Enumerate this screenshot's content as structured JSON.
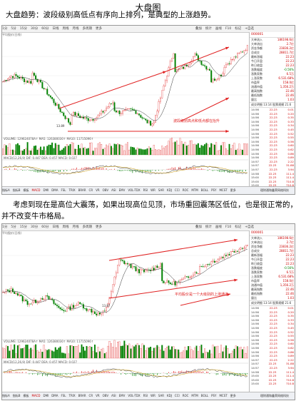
{
  "doc": {
    "title": "大盘图",
    "para1": "大盘趋势：波段级别高低点有序向上排列，是典型的上涨趋势。",
    "para2a": "考虑到现在是高位大震荡，如果出现高位见顶，市场重回震荡区低位，也是很正常的，",
    "para2b": "并不改变牛市格局。"
  },
  "colors": {
    "up": "#e02020",
    "down": "#008000",
    "price_line": "#e06060",
    "avg_line": "#333333",
    "annotation": "#e02020"
  },
  "menu_items": [
    "1分",
    "5分",
    "15分",
    "30分",
    "60分",
    "日线",
    "周线",
    "月线",
    "多周期",
    "更多"
  ],
  "menu_right": [
    "叠加",
    "统计",
    "画线",
    "F10",
    "标记",
    "+自选"
  ],
  "bottom_tabs": [
    "指标A",
    "指标B",
    "模板",
    "MACD",
    "DMI",
    "DMA",
    "FSL",
    "TRIX",
    "BRAR",
    "CR",
    "VR",
    "OBV",
    "ASI",
    "EMV",
    "VOL-TDX",
    "RSI",
    "WR",
    "SAR",
    "KDJ",
    "CCI",
    "ROC",
    "MTM",
    "BOLL",
    "PSY",
    "MCST",
    "更多"
  ],
  "bottom_right": "理财通和鑫荣网络科技",
  "bottom_left": [
    "扩展",
    "",
    ""
  ],
  "vol_label": "VOLUME: 129624078A↑  MA5: 126380030↑  MA10: 11715096↑",
  "macd_label": "MACD(12,26,9)  DIF: 0.447  DEA: 0.457  MACD: 0.027",
  "panel1": {
    "header_code": "000001",
    "sub": "平均股价(日线)",
    "low_label": "13.89",
    "annotation": "波段级别高点和低点都在抬升",
    "side_rows": [
      {
        "k": "大单流入",
        "v": "186198.6亿"
      },
      {
        "k": "大单流出",
        "v": "2.7亿"
      },
      {
        "k": "资金净额",
        "v": "23836.2亿"
      },
      {
        "k": "总成交",
        "v": "28811.7亿"
      },
      {
        "k": "最新涨幅",
        "v": "22.23"
      },
      {
        "k": "今日开盘",
        "v": "22.23"
      },
      {
        "k": "昨日收盘",
        "v": "22.23"
      },
      {
        "k": "涨跌幅度",
        "v": "-0.56%"
      },
      {
        "k": "涨跌家数",
        "v": "6.5万"
      },
      {
        "k": "上涨家数",
        "v": "6.531.68%"
      },
      {
        "k": "市盈率",
        "v": "158.0亿"
      },
      {
        "k": "流通市值",
        "v": "1,356.2万"
      },
      {
        "k": "最高指数",
        "v": "22.46"
      },
      {
        "k": "最低指数",
        "v": "22.46"
      },
      {
        "k": "量比",
        "v": "1.03"
      }
    ],
    "tick_head": "成交明细   13:14 股票规模   21.6",
    "ticks": [
      {
        "t": "14:56",
        "p": "22.23",
        "v": "0.01"
      },
      {
        "t": "14:56",
        "p": "22.23",
        "v": "0.20"
      },
      {
        "t": "14:56",
        "p": "22.23",
        "v": "0.35"
      },
      {
        "t": "14:56",
        "p": "22.23",
        "v": "0.33"
      },
      {
        "t": "14:56",
        "p": "22.23",
        "v": "0.34"
      },
      {
        "t": "14:56",
        "p": "22.23",
        "v": "0.45"
      },
      {
        "t": "14:56",
        "p": "22.23",
        "v": "0.52"
      },
      {
        "t": "14:56",
        "p": "22.23",
        "v": "0.55"
      },
      {
        "t": "14:56",
        "p": "22.23",
        "v": "0.56"
      },
      {
        "t": "14:56",
        "p": "22.23",
        "v": "0.60"
      },
      {
        "t": "14:56",
        "p": "22.23",
        "v": "0.62"
      },
      {
        "t": "14:56",
        "p": "22.23",
        "v": "0.86"
      },
      {
        "t": "14:56",
        "p": "22.23",
        "v": "0.89"
      },
      {
        "t": "14:57",
        "p": "22.23",
        "v": "2.22"
      },
      {
        "t": "14:57",
        "p": "22.23",
        "v": "31.88"
      },
      {
        "t": "14:57",
        "p": "22.23",
        "v": "3.94"
      },
      {
        "t": "14:58",
        "p": "22.23",
        "v": "111.4"
      },
      {
        "t": "15:00",
        "p": "22.23",
        "v": "111.4"
      },
      {
        "t": "15:00",
        "p": "22.23",
        "v": "710.8"
      },
      {
        "t": "15:00",
        "p": "22.23",
        "v": "710.8"
      }
    ]
  },
  "panel2": {
    "header_code": "000001",
    "sub": "平均股价(日线)",
    "low_label": "13.87",
    "annotation": "平均股价是一个大级别的上涨通道",
    "side_rows": [
      {
        "k": "大单流入",
        "v": "186198.6亿"
      },
      {
        "k": "大单流出",
        "v": "2.7亿"
      },
      {
        "k": "资金净额",
        "v": "23836.2亿"
      },
      {
        "k": "总成交",
        "v": "28811.7亿"
      },
      {
        "k": "最新涨幅",
        "v": "22.23"
      },
      {
        "k": "今日开盘",
        "v": "22.23"
      },
      {
        "k": "昨日收盘",
        "v": "22.23"
      },
      {
        "k": "涨跌幅度",
        "v": "-0.56%"
      },
      {
        "k": "涨跌家数",
        "v": "6.5万"
      },
      {
        "k": "上涨家数",
        "v": "6.531.68%"
      },
      {
        "k": "市盈率",
        "v": "158.0亿"
      },
      {
        "k": "流通市值",
        "v": "1,356.2万"
      },
      {
        "k": "最高指数",
        "v": "22.46"
      },
      {
        "k": "最低指数",
        "v": "22.46"
      },
      {
        "k": "量比",
        "v": "1.03"
      }
    ],
    "tick_head": "成交明细   13:14 股票规模   21.6",
    "ticks": [
      {
        "t": "14:56",
        "p": "22.23",
        "v": "0.01"
      },
      {
        "t": "14:56",
        "p": "22.23",
        "v": "0.20"
      },
      {
        "t": "14:56",
        "p": "22.23",
        "v": "0.35"
      },
      {
        "t": "14:56",
        "p": "22.23",
        "v": "0.33"
      },
      {
        "t": "14:56",
        "p": "22.23",
        "v": "0.34"
      },
      {
        "t": "14:56",
        "p": "22.23",
        "v": "0.45"
      },
      {
        "t": "14:56",
        "p": "22.23",
        "v": "0.52"
      },
      {
        "t": "14:56",
        "p": "22.23",
        "v": "0.55"
      },
      {
        "t": "14:56",
        "p": "22.23",
        "v": "0.56"
      },
      {
        "t": "14:56",
        "p": "22.23",
        "v": "0.60"
      },
      {
        "t": "14:56",
        "p": "22.23",
        "v": "0.62"
      },
      {
        "t": "14:56",
        "p": "22.23",
        "v": "0.86"
      },
      {
        "t": "14:56",
        "p": "22.23",
        "v": "0.89"
      },
      {
        "t": "14:57",
        "p": "22.23",
        "v": "2.22"
      },
      {
        "t": "14:57",
        "p": "22.23",
        "v": "31.88"
      },
      {
        "t": "14:57",
        "p": "22.23",
        "v": "3.94"
      },
      {
        "t": "14:58",
        "p": "22.23",
        "v": "111.4"
      },
      {
        "t": "15:00",
        "p": "22.23",
        "v": "111.4"
      },
      {
        "t": "15:00",
        "p": "22.23",
        "v": "710.8"
      },
      {
        "t": "15:00",
        "p": "22.23",
        "v": "710.8"
      }
    ]
  }
}
